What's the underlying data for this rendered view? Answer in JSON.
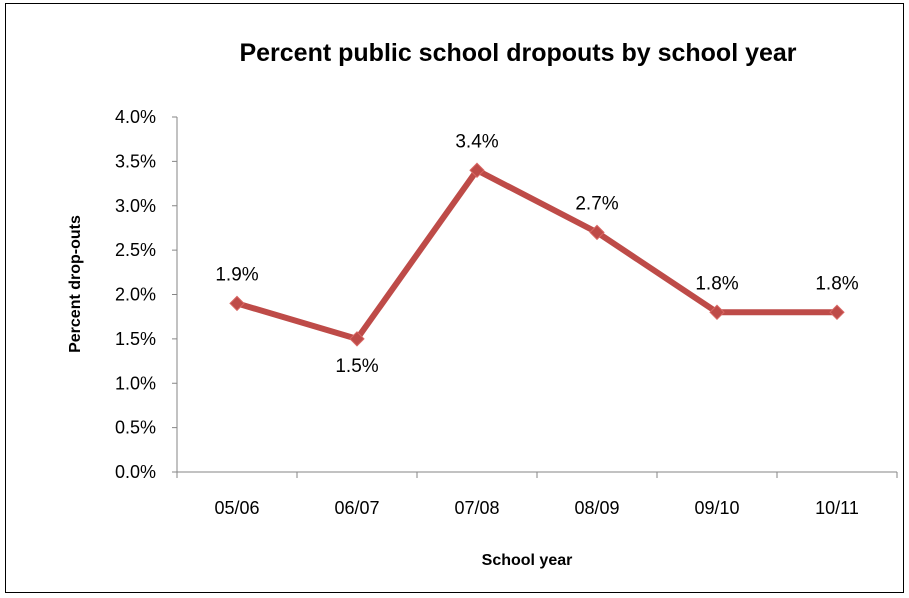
{
  "chart_data": {
    "type": "line",
    "title": "Percent public school dropouts by school year",
    "xlabel": "School year",
    "ylabel": "Percent drop-outs",
    "categories": [
      "05/06",
      "06/07",
      "07/08",
      "08/09",
      "09/10",
      "10/11"
    ],
    "series": [
      {
        "values": [
          1.9,
          1.5,
          3.4,
          2.7,
          1.8,
          1.8
        ],
        "labels": [
          "1.9%",
          "1.5%",
          "3.4%",
          "2.7%",
          "1.8%",
          "1.8%"
        ],
        "color": "#be4b48"
      }
    ],
    "ylim": [
      0,
      4.0
    ],
    "yticks": [
      0,
      0.5,
      1.0,
      1.5,
      2.0,
      2.5,
      3.0,
      3.5,
      4.0
    ],
    "yticklabels": [
      "0.0%",
      "0.5%",
      "1.0%",
      "1.5%",
      "2.0%",
      "2.5%",
      "3.0%",
      "3.5%",
      "4.0%"
    ],
    "grid": false,
    "legend": "none"
  }
}
